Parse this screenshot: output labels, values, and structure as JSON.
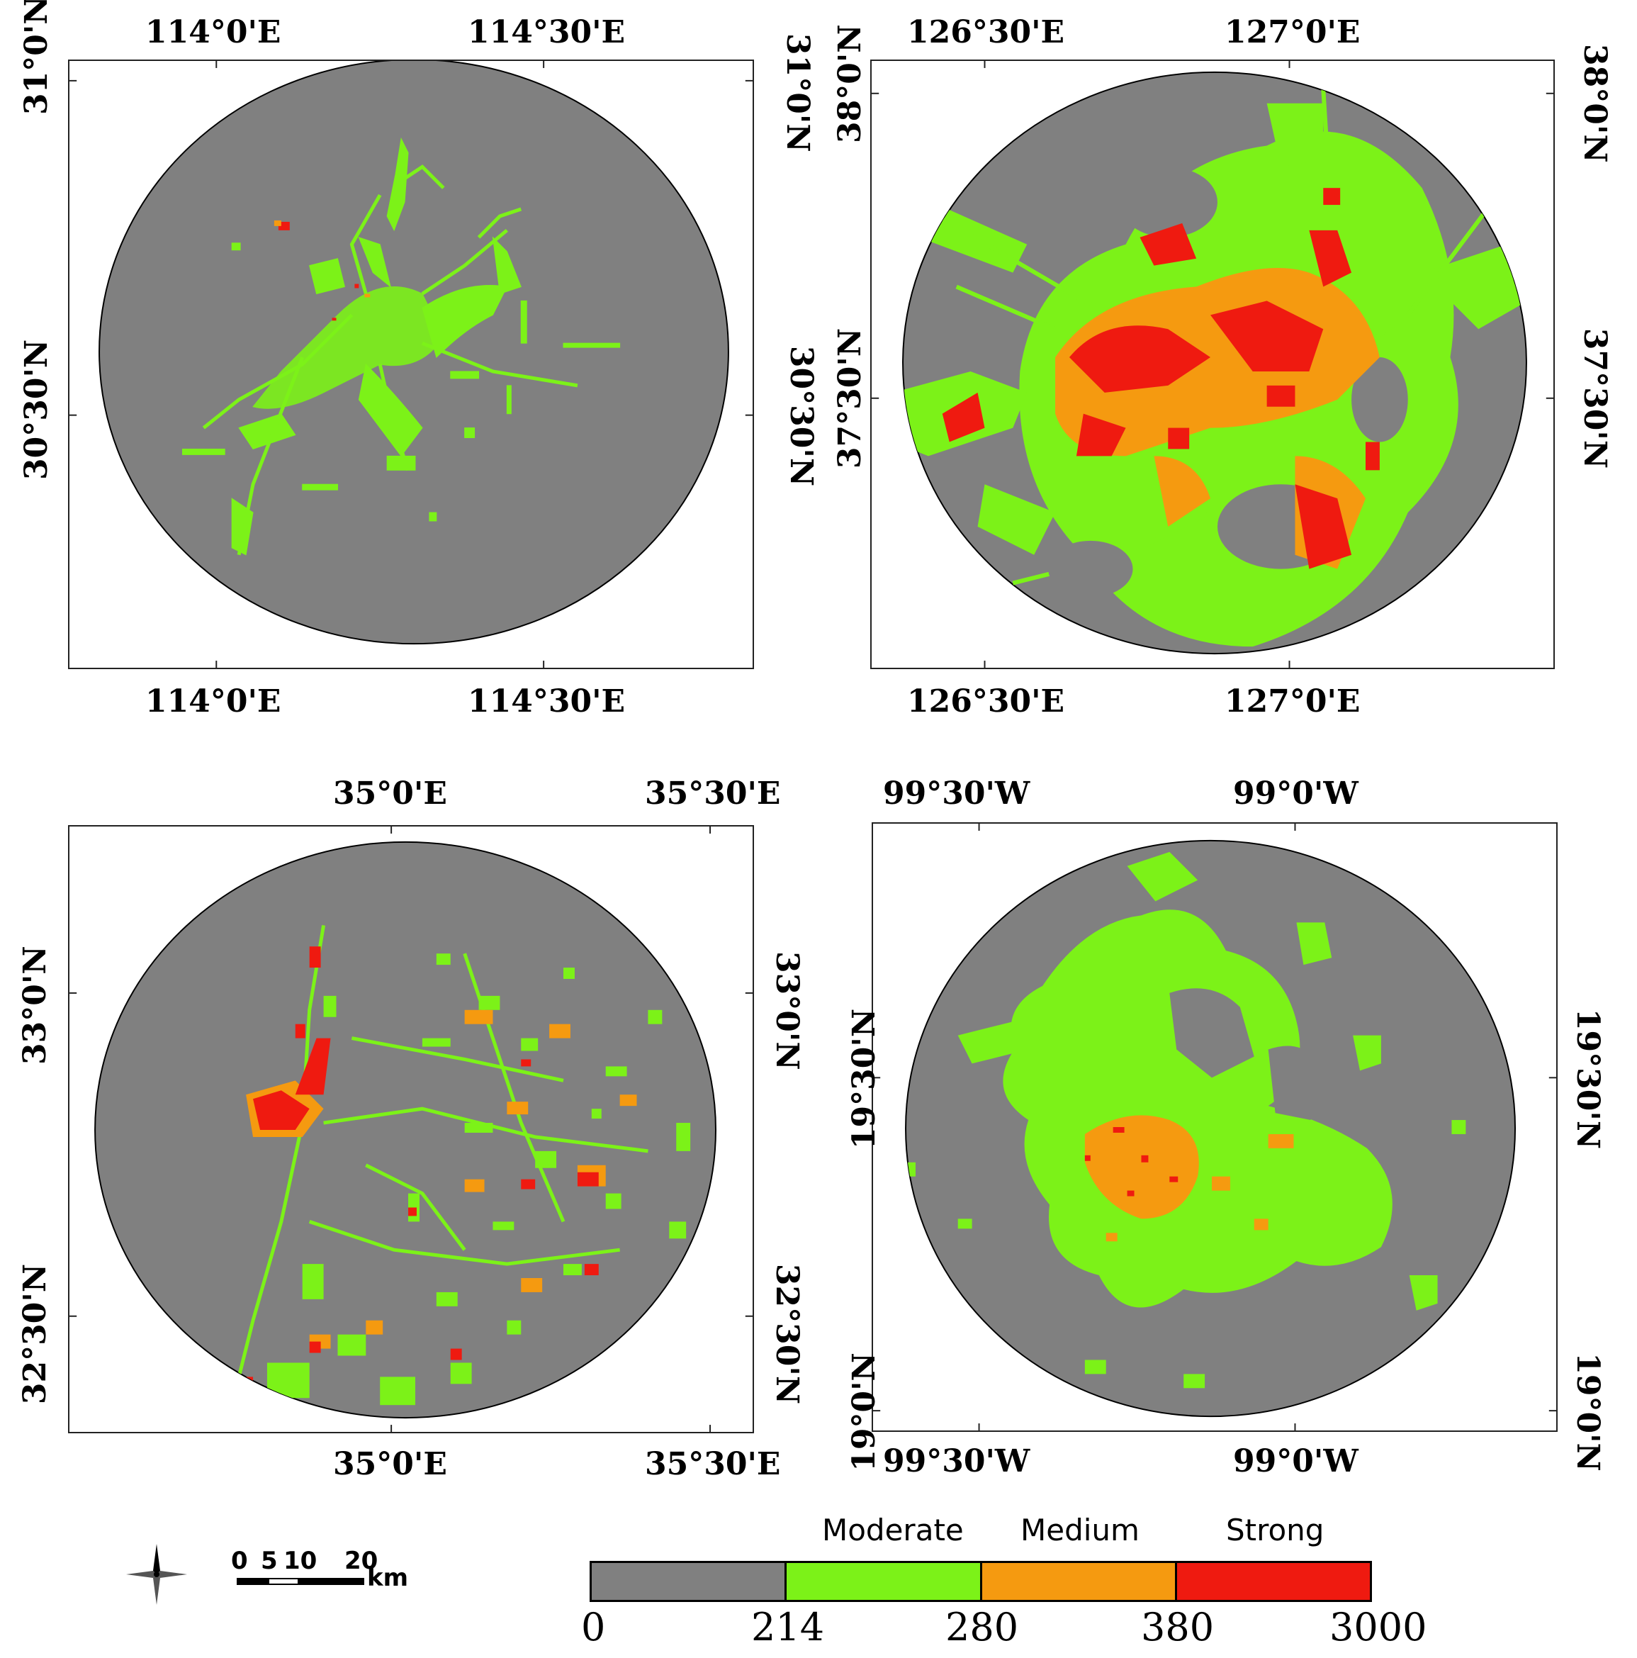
{
  "colors": {
    "background": "#808080",
    "moderate": "#7cf218",
    "medium": "#f59a10",
    "strong": "#ef1a10",
    "frame": "#222222"
  },
  "maps": [
    {
      "id": "top-left",
      "top_labels": [
        "114°0'E",
        "114°30'E"
      ],
      "bottom_labels": [
        "114°0'E",
        "114°30'E"
      ],
      "left_labels": [
        "31°0'N",
        "30°30'N"
      ],
      "right_labels": [
        "31°0'N",
        "30°30'N"
      ]
    },
    {
      "id": "top-right",
      "top_labels": [
        "126°30'E",
        "127°0'E"
      ],
      "bottom_labels": [
        "126°30'E",
        "127°0'E"
      ],
      "left_labels": [
        "38°0'N",
        "37°30'N"
      ],
      "right_labels": [
        "38°0'N",
        "37°30'N"
      ]
    },
    {
      "id": "bottom-left",
      "top_labels": [
        "35°0'E",
        "35°30'E"
      ],
      "bottom_labels": [
        "35°0'E",
        "35°30'E"
      ],
      "left_labels": [
        "33°0'N",
        "32°30'N"
      ],
      "right_labels": [
        "33°0'N",
        "32°30'N"
      ]
    },
    {
      "id": "bottom-right",
      "top_labels": [
        "99°30'W",
        "99°0'W"
      ],
      "bottom_labels": [
        "99°30'W",
        "99°0'W"
      ],
      "left_labels": [
        "19°30'N",
        "19°0'N"
      ],
      "right_labels": [
        "19°30'N",
        "19°0'N"
      ]
    }
  ],
  "legend": {
    "categories": [
      "Moderate",
      "Medium",
      "Strong"
    ],
    "breaks": [
      "0",
      "214",
      "280",
      "380",
      "3000"
    ]
  },
  "scale_bar": {
    "ticks": [
      "0",
      "5",
      "10",
      "20"
    ],
    "unit": "km"
  },
  "icons": {
    "north_arrow": "compass-rose-icon"
  }
}
